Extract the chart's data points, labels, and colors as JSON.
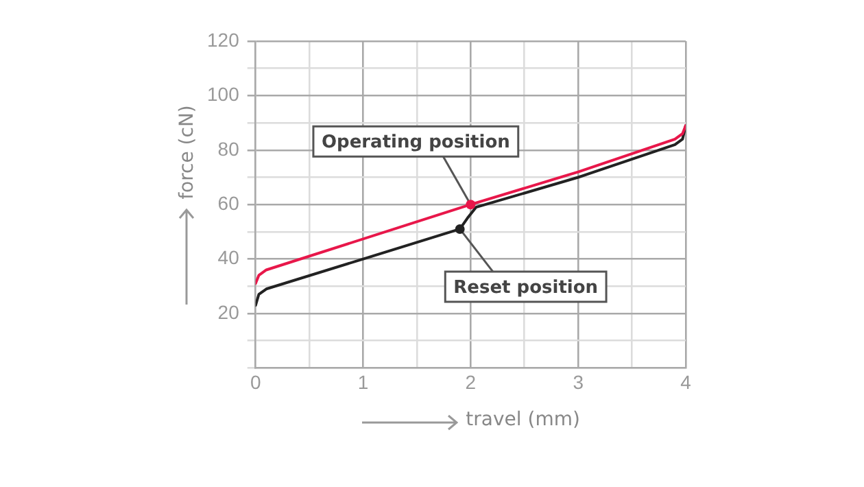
{
  "chart_data": {
    "type": "line",
    "xlabel": "travel (mm)",
    "ylabel": "force (cN)",
    "series": [
      {
        "color": "#e8174a",
        "x": [
          0,
          0.03,
          0.1,
          2,
          3,
          3.9,
          3.97,
          4
        ],
        "values": [
          31,
          34,
          36,
          60,
          72,
          84,
          86,
          89
        ]
      },
      {
        "color": "#222222",
        "x": [
          0,
          0.03,
          0.1,
          1,
          1.9,
          1.97,
          2.05,
          3,
          3.9,
          3.97,
          4
        ],
        "values": [
          23,
          27,
          29,
          40,
          51,
          55,
          59,
          70,
          82,
          84,
          89
        ]
      }
    ],
    "xlim": [
      0,
      4
    ],
    "ylim": [
      0,
      120
    ],
    "xticks": [
      0,
      {
        "value": 0.5,
        "label": null
      },
      1,
      {
        "value": 1.5,
        "label": null
      },
      2,
      {
        "value": 2.5,
        "label": null
      },
      3,
      {
        "value": 3.5,
        "label": null
      },
      4
    ],
    "yticks": [
      {
        "value": 0,
        "label": null
      },
      {
        "value": 10,
        "label": null
      },
      20,
      {
        "value": 30,
        "label": null
      },
      40,
      {
        "value": 50,
        "label": null
      },
      60,
      {
        "value": 70,
        "label": null
      },
      80,
      {
        "value": 90,
        "label": null
      },
      100,
      {
        "value": 110,
        "label": null
      },
      120
    ],
    "annotations": [
      {
        "text": "Operating position",
        "x": 2,
        "y": 60
      },
      {
        "text": "Reset position",
        "x": 1.9,
        "y": 51
      }
    ],
    "grid": true,
    "legend": false,
    "marker": "none",
    "line_style": "solid"
  }
}
